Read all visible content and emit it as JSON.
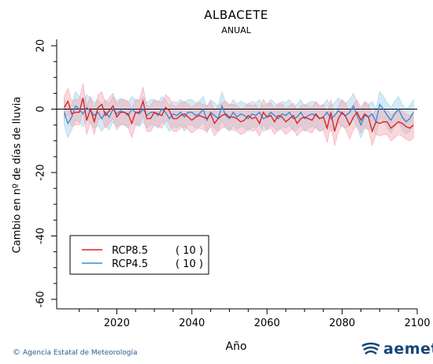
{
  "chart_data": {
    "type": "line",
    "title": "ALBACETE",
    "subtitle": "ANUAL",
    "xlabel": "Año",
    "ylabel": "Cambio en nº de días de lluvia",
    "xlim": [
      2004,
      2100
    ],
    "ylim": [
      -63,
      22
    ],
    "xticks": [
      2020,
      2040,
      2060,
      2080,
      2100
    ],
    "yticks": [
      20,
      0,
      -20,
      -40,
      -60
    ],
    "x_start": 2006,
    "zero_line": true,
    "legend_placement": "bottom-left",
    "series": [
      {
        "name": "RCP8.5",
        "count": "( 10 )",
        "color": "#d62728",
        "band_color": "#f4a6b0",
        "values": [
          0.5,
          2.5,
          -1.5,
          -1,
          -1,
          3.5,
          -3.5,
          0,
          -4,
          0.5,
          1.5,
          -2,
          -0.5,
          1,
          -2.5,
          -1,
          -1,
          -1.5,
          -4.5,
          -1,
          -1,
          2.5,
          -3,
          -3,
          -1,
          -1.5,
          -2,
          0.5,
          -0.5,
          -3,
          -3,
          -2,
          -1.5,
          -2.5,
          -3.5,
          -2.5,
          -2,
          -2.5,
          -3,
          -1.5,
          -4.5,
          -3,
          -2,
          -1.5,
          -2.5,
          -2.5,
          -3,
          -4,
          -3.5,
          -2,
          -3,
          -2.5,
          -4.5,
          -1,
          -2.5,
          -2,
          -4,
          -2,
          -2.5,
          -4,
          -3,
          -2,
          -4.5,
          -3,
          -2.5,
          -3,
          -3.5,
          -1.5,
          -3,
          -2.5,
          -6,
          -1,
          -7,
          -3,
          -1,
          -2.5,
          -5,
          -2.5,
          -1,
          -3.5,
          -1.5,
          -2.5,
          -7,
          -4,
          -4.5,
          -4,
          -4,
          -6,
          -5,
          -4,
          -4.5,
          -5.5,
          -6,
          -5
        ],
        "band_halfwidth": [
          3.5,
          4,
          4,
          4,
          4,
          4.5,
          4.5,
          4,
          4,
          4,
          4,
          4,
          4,
          4,
          4,
          4,
          4,
          4,
          4.5,
          4,
          4,
          4.5,
          4,
          4,
          4,
          4,
          4,
          4,
          4,
          4,
          4,
          4,
          4,
          4,
          4,
          4,
          4,
          4,
          4,
          4,
          4,
          4,
          4,
          4,
          4,
          4,
          4,
          4,
          4,
          4,
          4,
          4,
          4,
          4,
          4,
          4,
          4,
          4,
          4,
          4,
          4,
          4,
          4,
          4,
          4,
          4,
          4,
          4,
          4,
          4,
          4.5,
          4,
          4.5,
          4,
          4,
          4,
          4.5,
          4,
          4,
          4,
          4,
          4,
          4.5,
          4,
          4,
          4,
          4,
          4,
          4,
          4,
          4,
          4,
          4,
          4
        ]
      },
      {
        "name": "RCP4.5",
        "count": "( 10 )",
        "color": "#3a8fd9",
        "band_color": "#9fd0e8",
        "values": [
          -1,
          -4.5,
          -2.5,
          1,
          0,
          -1.5,
          0.5,
          -0.5,
          -2,
          -1,
          -3,
          -1,
          -2.5,
          0,
          -1.5,
          -0.5,
          -1,
          -2,
          0,
          -1,
          -1.5,
          0,
          -2,
          -1,
          -1,
          -2,
          0,
          -1,
          -3,
          -1.5,
          -2,
          -1,
          -2.5,
          -1,
          -1,
          -2,
          -1.5,
          0,
          -3.5,
          -1,
          -2,
          -3,
          1,
          -2,
          -3,
          -1,
          -2.5,
          -1.5,
          -2,
          -3,
          -1.5,
          -2,
          -1,
          -3,
          -2.5,
          -1,
          -2,
          -3,
          -1.5,
          -2,
          -1,
          -3,
          -2.5,
          -1,
          -3,
          -2,
          -1.5,
          -2,
          -3,
          -2.5,
          -1,
          -3,
          -2,
          -0.5,
          -1.5,
          -2,
          -1,
          1,
          -2,
          -5,
          -2,
          -2.5,
          -1.5,
          -4,
          1.5,
          0,
          -2,
          -3.5,
          -1.5,
          0,
          -2.5,
          -4,
          -3,
          -1
        ],
        "band_halfwidth": [
          4,
          4.5,
          4,
          4.5,
          4,
          4,
          4,
          4,
          4,
          4,
          4,
          4,
          4,
          4,
          4,
          4,
          4,
          4,
          4,
          4,
          4,
          4,
          4,
          4,
          4,
          4,
          4,
          4,
          4,
          4,
          4,
          4,
          4.5,
          4,
          4,
          4,
          4,
          4,
          4,
          4,
          4,
          4,
          4.5,
          4,
          4,
          4,
          4,
          4,
          4,
          4,
          4,
          4,
          4,
          4,
          4,
          4,
          4,
          4,
          4,
          4,
          4,
          4,
          4,
          4,
          4,
          4,
          4,
          4,
          4,
          4,
          4,
          4,
          4,
          4,
          4,
          4,
          4,
          4,
          4,
          4,
          4,
          4,
          4,
          4,
          4,
          4,
          4,
          4,
          4,
          4,
          4,
          4,
          4,
          4,
          4,
          4
        ]
      }
    ]
  },
  "footer": {
    "credit": "Agencia Estatal de Meteorología",
    "logo_text": "aemet"
  }
}
